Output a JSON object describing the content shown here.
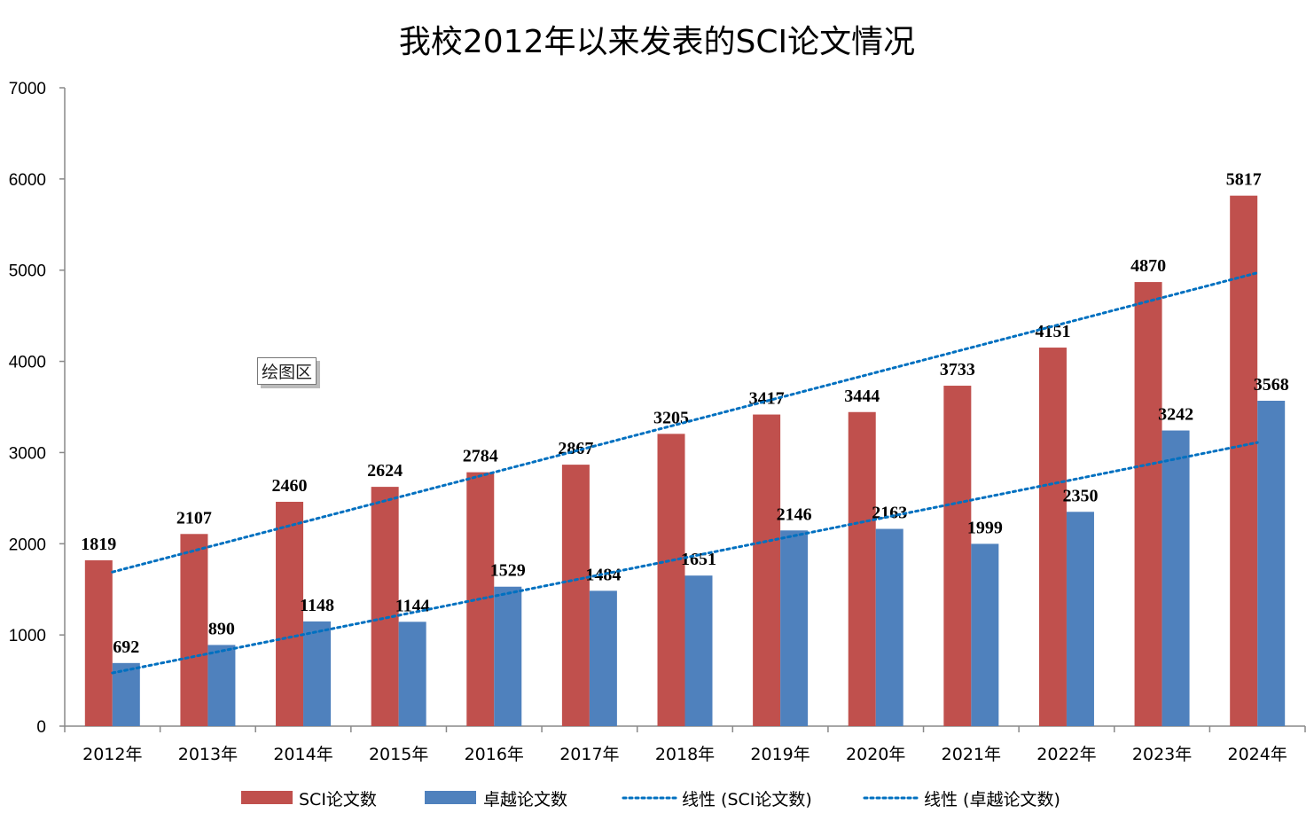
{
  "chart_data": {
    "type": "bar",
    "title": "我校2012年以来发表的SCI论文情况",
    "categories": [
      "2012年",
      "2013年",
      "2014年",
      "2015年",
      "2016年",
      "2017年",
      "2018年",
      "2019年",
      "2020年",
      "2021年",
      "2022年",
      "2023年",
      "2024年"
    ],
    "series": [
      {
        "name": "SCI论文数",
        "color": "#C0504D",
        "values": [
          1819,
          2107,
          2460,
          2624,
          2784,
          2867,
          3205,
          3417,
          3444,
          3733,
          4151,
          4870,
          5817
        ]
      },
      {
        "name": "卓越论文数",
        "color": "#4F81BD",
        "values": [
          692,
          890,
          1148,
          1144,
          1529,
          1484,
          1651,
          2146,
          2163,
          1999,
          2350,
          3242,
          3568
        ]
      }
    ],
    "trendlines": [
      {
        "name": "线性 (SCI论文数)",
        "of": 0,
        "type": "linear",
        "color": "#0070C0"
      },
      {
        "name": "线性 (卓越论文数)",
        "of": 1,
        "type": "linear",
        "color": "#0070C0"
      }
    ],
    "ylim": [
      0,
      7000
    ],
    "yticks": [
      0,
      1000,
      2000,
      3000,
      4000,
      5000,
      6000,
      7000
    ],
    "xlabel": "",
    "ylabel": "",
    "grid": false,
    "legend": "bottom"
  },
  "tooltip": "绘图区"
}
